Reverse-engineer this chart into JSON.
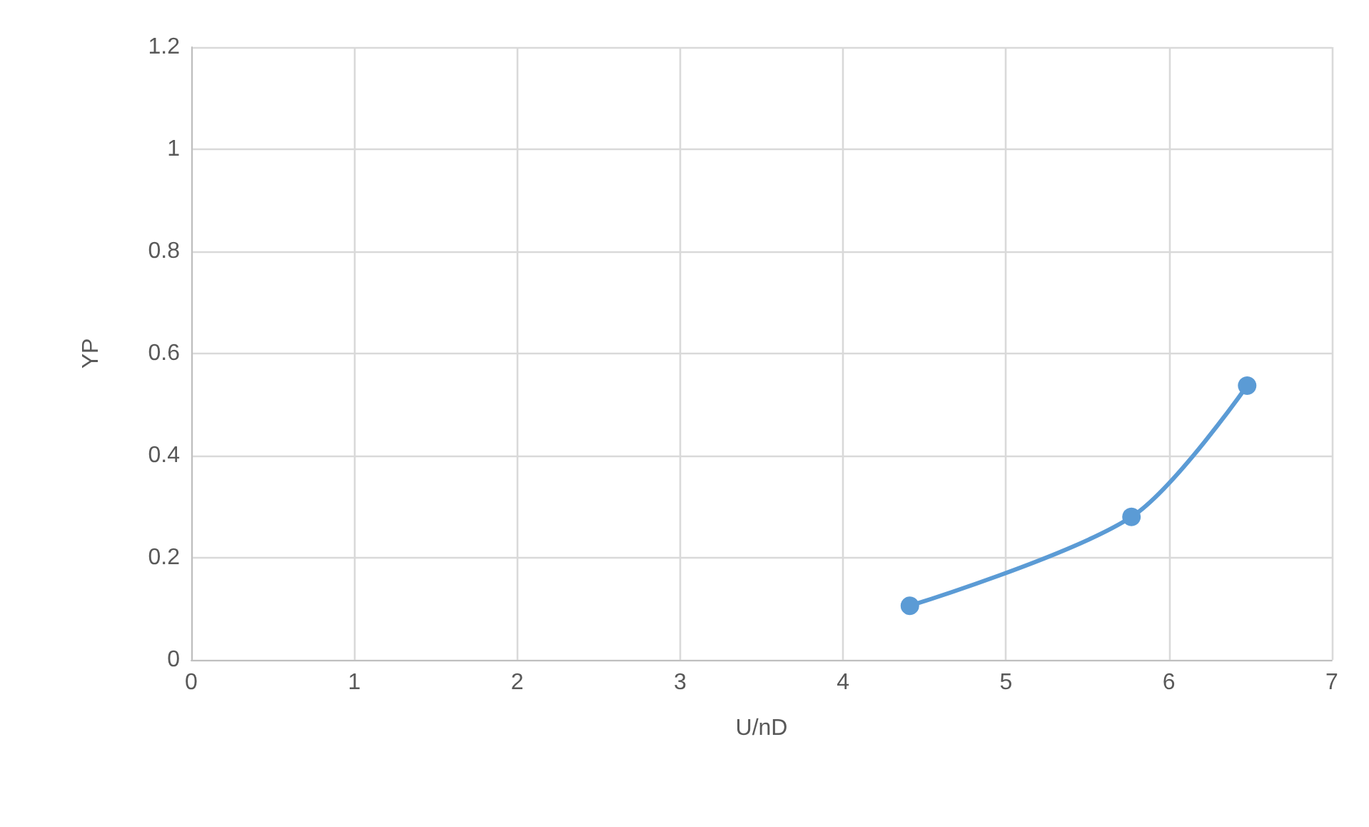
{
  "chart_data": {
    "type": "line",
    "xlabel": "U/nD",
    "ylabel": "YP",
    "x": [
      4.41,
      5.77,
      6.48
    ],
    "series": [
      {
        "color": "#5b9bd5",
        "values": [
          0.106,
          0.28,
          0.537
        ]
      }
    ],
    "xlim": [
      0,
      7
    ],
    "xticks": [
      0,
      1,
      2,
      3,
      4,
      5,
      6,
      7
    ],
    "ylim": [
      0,
      1.2
    ],
    "yticks": [
      0,
      0.2,
      0.4,
      0.6,
      0.8,
      1,
      1.2
    ],
    "grid": true,
    "marker": "circle",
    "line_style": "solid"
  }
}
